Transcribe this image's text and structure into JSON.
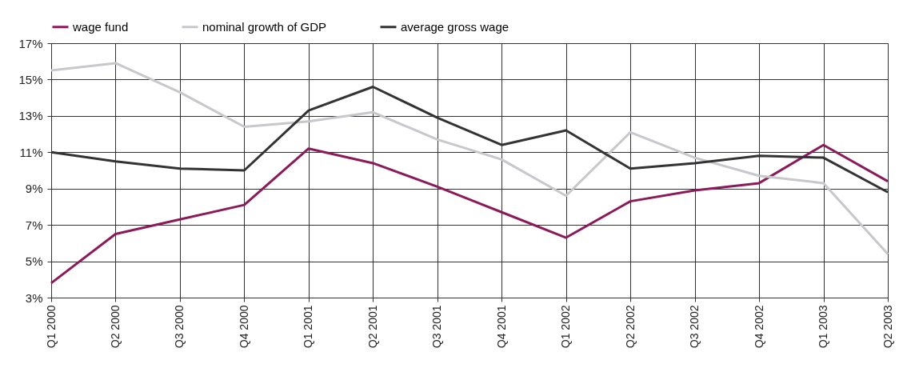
{
  "chart_data": {
    "type": "line",
    "categories": [
      "Q1 2000",
      "Q2 2000",
      "Q3 2000",
      "Q4 2000",
      "Q1 2001",
      "Q2 2001",
      "Q3 2001",
      "Q4 2001",
      "Q1 2002",
      "Q2 2002",
      "Q3 2002",
      "Q4 2002",
      "Q1 2003",
      "Q2 2003"
    ],
    "series": [
      {
        "name": "wage fund",
        "color": "#8b1a5a",
        "values": [
          3.8,
          6.5,
          7.3,
          8.1,
          11.2,
          10.4,
          9.1,
          7.7,
          6.3,
          8.3,
          8.9,
          9.3,
          11.4,
          9.4
        ]
      },
      {
        "name": "nominal growth of GDP",
        "color": "#c8c8cc",
        "values": [
          15.5,
          15.9,
          14.3,
          12.4,
          12.7,
          13.2,
          11.7,
          10.6,
          8.6,
          12.1,
          10.7,
          9.7,
          9.3,
          5.4
        ]
      },
      {
        "name": "average gross wage",
        "color": "#333333",
        "values": [
          11.0,
          10.5,
          10.1,
          10.0,
          13.3,
          14.6,
          12.9,
          11.4,
          12.2,
          10.1,
          10.4,
          10.8,
          10.7,
          8.8
        ]
      }
    ],
    "ylim": [
      3,
      17
    ],
    "yticks": [
      {
        "value": 3,
        "label": "3%"
      },
      {
        "value": 5,
        "label": "5%"
      },
      {
        "value": 7,
        "label": "7%"
      },
      {
        "value": 9,
        "label": "9%"
      },
      {
        "value": 11,
        "label": "11%"
      },
      {
        "value": 13,
        "label": "13%"
      },
      {
        "value": 15,
        "label": "15%"
      },
      {
        "value": 17,
        "label": "17%"
      }
    ],
    "grid": true,
    "legend": "top",
    "line_style": "solid"
  }
}
